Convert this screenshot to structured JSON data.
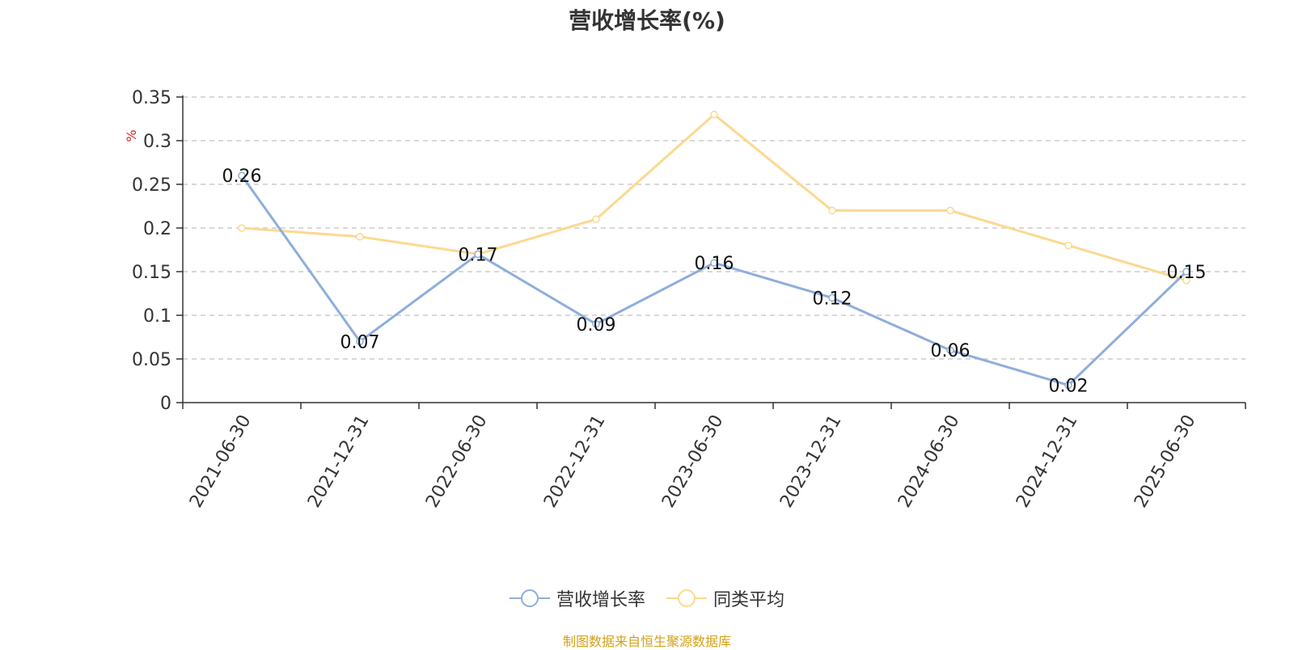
{
  "title": "营收增长率(%)",
  "source_note": "制图数据来自恒生聚源数据库",
  "colors": {
    "series_1": "#8eaedb",
    "series_2": "#fbd98f",
    "grid": "#cccccc",
    "axis": "#333333",
    "unit_label": "#e02020",
    "source_note": "#d4a017"
  },
  "chart_data": {
    "type": "line",
    "title": "营收增长率(%)",
    "x": [
      "2021-06-30",
      "2021-12-31",
      "2022-06-30",
      "2022-12-31",
      "2023-06-30",
      "2023-12-31",
      "2024-06-30",
      "2024-12-31",
      "2025-06-30"
    ],
    "ylabel": "%",
    "ylim": [
      0,
      0.35
    ],
    "yticks": [
      "0",
      "0.05",
      "0.1",
      "0.15",
      "0.2",
      "0.25",
      "0.3",
      "0.35"
    ],
    "grid": true,
    "legend_position": "bottom-center",
    "series": [
      {
        "name": "营收增长率",
        "values": [
          0.26,
          0.07,
          0.17,
          0.09,
          0.16,
          0.12,
          0.06,
          0.02,
          0.15
        ],
        "labels": [
          "0.26",
          "0.07",
          "0.17",
          "0.09",
          "0.16",
          "0.12",
          "0.06",
          "0.02",
          "0.15"
        ],
        "color": "#8eaedb"
      },
      {
        "name": "同类平均",
        "values": [
          0.2,
          0.19,
          0.17,
          0.21,
          0.33,
          0.22,
          0.22,
          0.18,
          0.14
        ],
        "color": "#fbd98f"
      }
    ]
  }
}
